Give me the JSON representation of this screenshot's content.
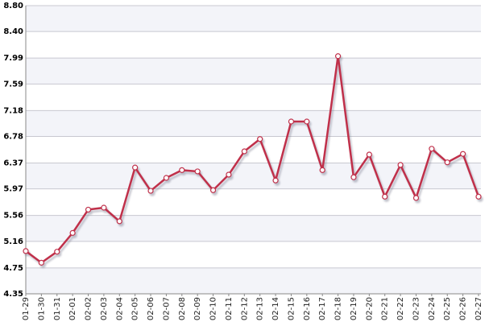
{
  "chart_data": {
    "type": "line",
    "categories": [
      "01-29",
      "01-30",
      "01-31",
      "02-01",
      "02-02",
      "02-03",
      "02-04",
      "02-05",
      "02-06",
      "02-07",
      "02-08",
      "02-09",
      "02-10",
      "02-11",
      "02-12",
      "02-13",
      "02-14",
      "02-15",
      "02-16",
      "02-17",
      "02-18",
      "02-19",
      "02-20",
      "02-21",
      "02-22",
      "02-23",
      "02-24",
      "02-25",
      "02-26",
      "02-27"
    ],
    "values": [
      5.01,
      4.83,
      5.0,
      5.29,
      5.65,
      5.68,
      5.47,
      6.3,
      5.94,
      6.14,
      6.26,
      6.24,
      5.95,
      6.19,
      6.55,
      6.74,
      6.1,
      7.01,
      7.01,
      6.26,
      8.02,
      6.15,
      6.5,
      5.85,
      6.34,
      5.83,
      6.59,
      6.38,
      6.51,
      5.85
    ],
    "color": "#c0304a",
    "ylim": [
      4.35,
      8.8
    ],
    "yticks": [
      4.35,
      4.75,
      5.16,
      5.56,
      5.97,
      6.37,
      6.78,
      7.18,
      7.59,
      7.99,
      {
        "value": 8.4,
        "label": "8.40"
      },
      {
        "value": 8.8,
        "label": "8.80"
      }
    ],
    "grid": true
  }
}
